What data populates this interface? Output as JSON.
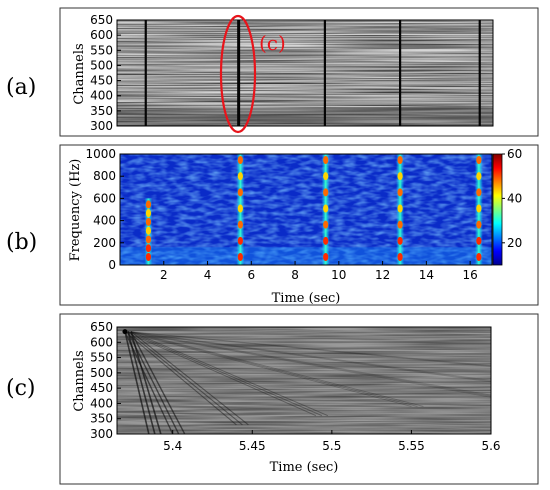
{
  "panels": {
    "a": {
      "label": "(a)"
    },
    "b": {
      "label": "(b)"
    },
    "c": {
      "label": "(c)"
    }
  },
  "annotation": {
    "callout": "(c)",
    "color": "#e8141b"
  },
  "chart_data": [
    {
      "panel": "a",
      "type": "heatmap",
      "title": "",
      "xlabel": "",
      "ylabel": "Channels",
      "ylim": [
        300,
        650
      ],
      "yticks": [
        300,
        350,
        400,
        450,
        500,
        550,
        600,
        650
      ],
      "xlim": [
        0,
        17
      ],
      "colormap": "gray",
      "event_times_sec": [
        1.3,
        5.5,
        9.4,
        12.8,
        16.4
      ],
      "highlighted_event_sec": 5.5
    },
    {
      "panel": "b",
      "type": "heatmap",
      "title": "",
      "xlabel": "Time (sec)",
      "ylabel": "Frequency (Hz)",
      "xlim": [
        0,
        17
      ],
      "ylim": [
        0,
        1000
      ],
      "xticks": [
        2,
        4,
        6,
        8,
        10,
        12,
        14,
        16
      ],
      "yticks": [
        0,
        200,
        400,
        600,
        800,
        1000
      ],
      "colormap": "jet",
      "colorbar": {
        "min": 10,
        "max": 60,
        "ticks": [
          20,
          40,
          60
        ]
      },
      "event_times_sec": [
        1.3,
        5.5,
        9.4,
        12.8,
        16.4
      ],
      "event_peak_freq_hz": [
        600,
        1000,
        1000,
        1000,
        1000
      ]
    },
    {
      "panel": "c",
      "type": "heatmap",
      "title": "",
      "xlabel": "Time (sec)",
      "ylabel": "Channels",
      "xlim": [
        5.365,
        5.6
      ],
      "ylim": [
        300,
        650
      ],
      "xticks": [
        5.4,
        5.45,
        5.5,
        5.55,
        5.6
      ],
      "xtick_labels": [
        "5.4",
        "5.45",
        "5.5",
        "5.55",
        "5.6"
      ],
      "yticks": [
        300,
        350,
        400,
        450,
        500,
        550,
        600,
        650
      ],
      "colormap": "gray",
      "source_channel": 635,
      "source_time_sec": 5.37
    }
  ]
}
